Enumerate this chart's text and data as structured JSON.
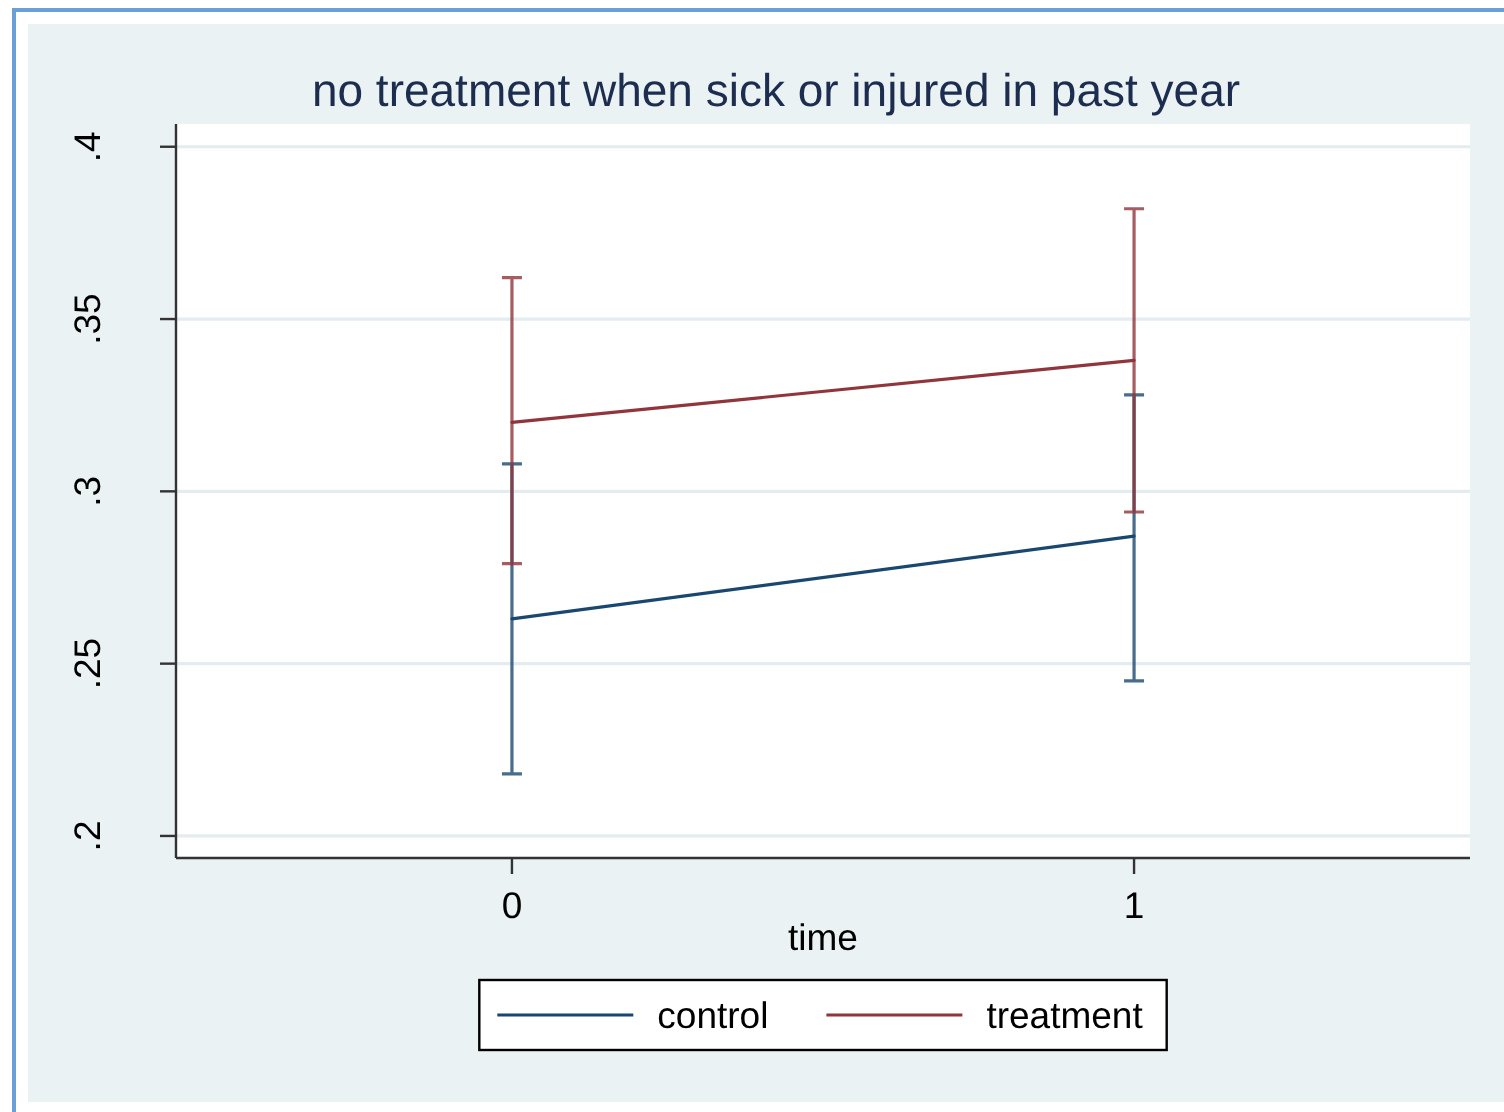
{
  "chart_data": {
    "type": "line",
    "title": "no treatment when sick or injured in past year",
    "xlabel": "time",
    "x": [
      0,
      1
    ],
    "xlim": [
      -0.54,
      1.54
    ],
    "xticks": [
      0,
      1
    ],
    "ylim": [
      0.1936,
      0.4066
    ],
    "yticks": [
      {
        "value": 0.2,
        "label": ".2"
      },
      {
        "value": 0.25,
        "label": ".25"
      },
      {
        "value": 0.3,
        "label": ".3"
      },
      {
        "value": 0.35,
        "label": ".35"
      },
      {
        "value": 0.4,
        "label": ".4"
      }
    ],
    "grid": "y",
    "legend": "bottom",
    "series": [
      {
        "name": "control",
        "color": "#1a476f",
        "values": [
          0.263,
          0.287
        ],
        "errors": [
          [
            0.218,
            0.308
          ],
          [
            0.245,
            0.328
          ]
        ]
      },
      {
        "name": "treatment",
        "color": "#90353b",
        "values": [
          0.32,
          0.338
        ],
        "errors": [
          [
            0.279,
            0.362
          ],
          [
            0.294,
            0.382
          ]
        ]
      }
    ]
  }
}
